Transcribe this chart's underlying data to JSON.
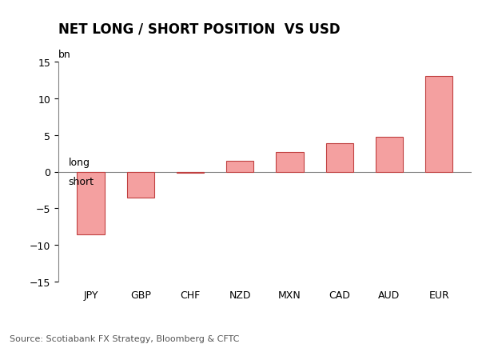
{
  "categories": [
    "JPY",
    "GBP",
    "CHF",
    "NZD",
    "MXN",
    "CAD",
    "AUD",
    "EUR"
  ],
  "values": [
    -8.5,
    -3.5,
    -0.2,
    1.5,
    2.7,
    3.9,
    4.7,
    13.0
  ],
  "bar_color": "#f4a0a0",
  "bar_edge_color": "#c04040",
  "title": "NET LONG / SHORT POSITION  VS USD",
  "subtitle": "bn",
  "ylim": [
    -15.0,
    15.0
  ],
  "yticks": [
    -15.0,
    -10.0,
    -5.0,
    0.0,
    5.0,
    10.0,
    15.0
  ],
  "annotation_long": "long",
  "annotation_short": "short",
  "source_text": "Source: Scotiabank FX Strategy, Bloomberg & CFTC",
  "title_fontsize": 12,
  "subtitle_fontsize": 9,
  "tick_fontsize": 9,
  "source_fontsize": 8,
  "background_color": "#ffffff",
  "bar_width": 0.55
}
